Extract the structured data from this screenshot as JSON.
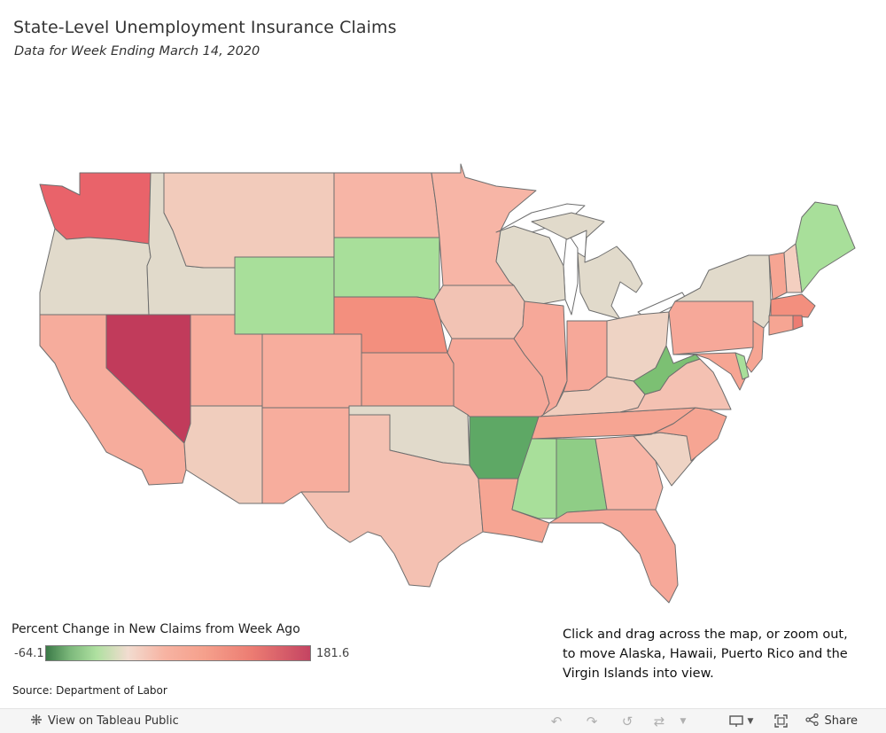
{
  "header": {
    "title": "State-Level Unemployment Insurance Claims",
    "subtitle": "Data for Week Ending March 14, 2020"
  },
  "legend": {
    "title": "Percent Change in New Claims from Week Ago",
    "min_label": "-64.1",
    "max_label": "181.6",
    "min": -64.1,
    "max": 181.6,
    "colors": [
      "#3b7a47",
      "#7cb87b",
      "#aee0a0",
      "#f2dcd0",
      "#f7b3a2",
      "#f5a08c",
      "#ec7c72",
      "#c44462"
    ]
  },
  "source": "Source: Department of Labor",
  "note": "Click and drag across the map, or zoom out, to move Alaska, Hawaii, Puerto Rico and the Virgin Islands into view.",
  "map": {
    "states": [
      {
        "id": "WA",
        "fill": "#e9636a"
      },
      {
        "id": "OR",
        "fill": "#e1dacb"
      },
      {
        "id": "CA",
        "fill": "#f6ac9c"
      },
      {
        "id": "NV",
        "fill": "#c13b5b"
      },
      {
        "id": "ID",
        "fill": "#e1dacb"
      },
      {
        "id": "MT",
        "fill": "#f2cbbb"
      },
      {
        "id": "WY",
        "fill": "#a8df9a"
      },
      {
        "id": "UT",
        "fill": "#f7ad9d"
      },
      {
        "id": "AZ",
        "fill": "#f0cdbd"
      },
      {
        "id": "CO",
        "fill": "#f7ad9d"
      },
      {
        "id": "NM",
        "fill": "#f7ad9d"
      },
      {
        "id": "ND",
        "fill": "#f7b5a6"
      },
      {
        "id": "SD",
        "fill": "#a8df9a"
      },
      {
        "id": "NE",
        "fill": "#f38f7e"
      },
      {
        "id": "KS",
        "fill": "#f6a593"
      },
      {
        "id": "OK",
        "fill": "#e1dacb"
      },
      {
        "id": "TX",
        "fill": "#f4c1b2"
      },
      {
        "id": "MN",
        "fill": "#f7b5a6"
      },
      {
        "id": "IA",
        "fill": "#f2c3b4"
      },
      {
        "id": "MO",
        "fill": "#f6a899"
      },
      {
        "id": "AR",
        "fill": "#5ea865"
      },
      {
        "id": "LA",
        "fill": "#f6a593"
      },
      {
        "id": "WI",
        "fill": "#e1dacb"
      },
      {
        "id": "IL",
        "fill": "#f6a899"
      },
      {
        "id": "MI",
        "fill": "#e1dacb"
      },
      {
        "id": "IN",
        "fill": "#f6a899"
      },
      {
        "id": "OH",
        "fill": "#eed3c4"
      },
      {
        "id": "KY",
        "fill": "#f0cdbd"
      },
      {
        "id": "TN",
        "fill": "#f6a593"
      },
      {
        "id": "MS",
        "fill": "#a8df9a"
      },
      {
        "id": "AL",
        "fill": "#8fcd86"
      },
      {
        "id": "GA",
        "fill": "#f7b5a6"
      },
      {
        "id": "FL",
        "fill": "#f6a899"
      },
      {
        "id": "SC",
        "fill": "#eed3c4"
      },
      {
        "id": "NC",
        "fill": "#f6a593"
      },
      {
        "id": "VA",
        "fill": "#f4c1b2"
      },
      {
        "id": "WV",
        "fill": "#7cc073"
      },
      {
        "id": "PA",
        "fill": "#f6a899"
      },
      {
        "id": "NY",
        "fill": "#e1dacb"
      },
      {
        "id": "VT",
        "fill": "#f6a593"
      },
      {
        "id": "NH",
        "fill": "#f4cfc0"
      },
      {
        "id": "ME",
        "fill": "#a8df9a"
      },
      {
        "id": "MA",
        "fill": "#f38f7e"
      },
      {
        "id": "CT",
        "fill": "#f6a593"
      },
      {
        "id": "RI",
        "fill": "#ec7c72"
      },
      {
        "id": "NJ",
        "fill": "#f6a593"
      },
      {
        "id": "DE",
        "fill": "#a8df9a"
      },
      {
        "id": "MD",
        "fill": "#f6a593"
      }
    ]
  },
  "toolbar": {
    "view_label": "View on Tableau Public",
    "share_label": "Share",
    "icons": [
      "tableau-logo-icon",
      "undo-icon",
      "redo-icon",
      "revert-icon",
      "refresh-icon",
      "download-icon",
      "fullscreen-icon",
      "share-icon"
    ]
  }
}
